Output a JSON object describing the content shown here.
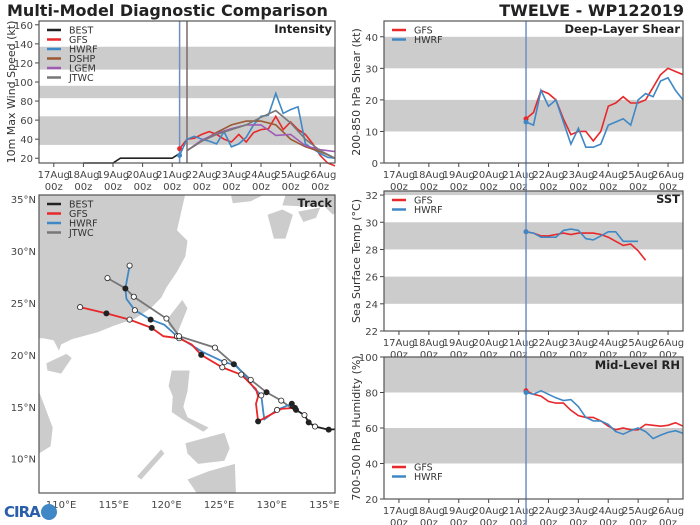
{
  "header": {
    "title": "Multi-Model Diagnostic Comparison",
    "storm": "TWELVE - WP122019"
  },
  "logo_text": "CIRA",
  "colors": {
    "BEST": "#222222",
    "GFS": "#e8282a",
    "HWRF": "#3f88c5",
    "DSHP": "#9b5a32",
    "LGEM": "#a05cb4",
    "JTWC": "#777777",
    "band": "#cccccc",
    "land": "#cccccc"
  },
  "x_ticks": [
    "17Aug 00z",
    "18Aug 00z",
    "19Aug 00z",
    "20Aug 00z",
    "21Aug 00z",
    "22Aug 00z",
    "23Aug 00z",
    "24Aug 00z",
    "25Aug 00z",
    "26Aug 00z"
  ],
  "x_tick_labels": [
    [
      "17Aug",
      "00z"
    ],
    [
      "18Aug",
      "00z"
    ],
    [
      "19Aug",
      "00z"
    ],
    [
      "20Aug",
      "00z"
    ],
    [
      "21Aug",
      "00z"
    ],
    [
      "22Aug",
      "00z"
    ],
    [
      "23Aug",
      "00z"
    ],
    [
      "24Aug",
      "00z"
    ],
    [
      "25Aug",
      "00z"
    ],
    [
      "26Aug",
      "00z"
    ]
  ],
  "xlim": [
    "16Aug 12z",
    "26Aug 12z"
  ],
  "chart_data": [
    {
      "id": "intensity",
      "type": "line",
      "title": "Intensity",
      "ylabel": "10m Max Wind Speed (kt)",
      "ylim": [
        15,
        164
      ],
      "yticks": [
        20,
        40,
        60,
        80,
        100,
        120,
        140,
        160
      ],
      "bands": [
        [
          34,
          64
        ],
        [
          83,
          96
        ],
        [
          113,
          137
        ]
      ],
      "vlines": [
        {
          "x": "21Aug 06z",
          "color": "#6f8fc0"
        },
        {
          "x": "21Aug 12z",
          "color": "#7a6a6a"
        }
      ],
      "legend": "top-left",
      "series": [
        {
          "name": "BEST",
          "x": [
            "18Aug 00z",
            "19Aug 00z",
            "19Aug 06z",
            "21Aug 00z",
            "21Aug 06z"
          ],
          "y": [
            15,
            15,
            20,
            20,
            25
          ]
        },
        {
          "name": "GFS",
          "x": [
            "21Aug 06z",
            "21Aug 12z",
            "21Aug 18z",
            "22Aug 00z",
            "22Aug 06z",
            "22Aug 12z",
            "22Aug 18z",
            "23Aug 00z",
            "23Aug 06z",
            "23Aug 12z",
            "23Aug 18z",
            "24Aug 00z",
            "24Aug 06z",
            "24Aug 12z",
            "24Aug 18z",
            "25Aug 00z",
            "25Aug 06z",
            "25Aug 12z",
            "25Aug 18z",
            "26Aug 00z",
            "26Aug 06z",
            "26Aug 12z"
          ],
          "y": [
            30,
            40,
            41,
            45,
            48,
            45,
            40,
            37,
            45,
            37,
            47,
            50,
            51,
            64,
            50,
            58,
            50,
            45,
            35,
            23,
            15,
            12
          ]
        },
        {
          "name": "HWRF",
          "x": [
            "21Aug 06z",
            "21Aug 12z",
            "21Aug 18z",
            "22Aug 00z",
            "22Aug 06z",
            "22Aug 12z",
            "22Aug 18z",
            "23Aug 00z",
            "23Aug 06z",
            "23Aug 12z",
            "23Aug 18z",
            "24Aug 00z",
            "24Aug 06z",
            "24Aug 12z",
            "24Aug 18z",
            "25Aug 00z",
            "25Aug 06z",
            "25Aug 12z",
            "25Aug 18z",
            "26Aug 00z",
            "26Aug 06z",
            "26Aug 12z"
          ],
          "y": [
            23,
            40,
            43,
            40,
            38,
            35,
            48,
            32,
            35,
            42,
            55,
            64,
            65,
            88,
            67,
            71,
            74,
            35,
            30,
            25,
            21,
            20
          ]
        },
        {
          "name": "DSHP",
          "x": [
            "21Aug 12z",
            "22Aug 00z",
            "22Aug 12z",
            "23Aug 00z",
            "23Aug 12z",
            "24Aug 00z",
            "24Aug 12z",
            "25Aug 00z",
            "25Aug 12z",
            "26Aug 00z",
            "26Aug 12z"
          ],
          "y": [
            28,
            38,
            47,
            55,
            59,
            59,
            55,
            40,
            32,
            27,
            20
          ]
        },
        {
          "name": "LGEM",
          "x": [
            "21Aug 12z",
            "22Aug 00z",
            "22Aug 12z",
            "23Aug 00z",
            "23Aug 12z",
            "24Aug 00z",
            "24Aug 12z",
            "25Aug 00z",
            "25Aug 12z",
            "26Aug 00z",
            "26Aug 12z"
          ],
          "y": [
            28,
            39,
            46,
            51,
            55,
            55,
            44,
            45,
            33,
            29,
            27
          ]
        },
        {
          "name": "JTWC",
          "x": [
            "21Aug 12z",
            "22Aug 00z",
            "22Aug 12z",
            "23Aug 00z",
            "23Aug 12z",
            "24Aug 00z",
            "24Aug 12z",
            "25Aug 00z",
            "25Aug 12z",
            "26Aug 00z",
            "26Aug 12z"
          ],
          "y": [
            28,
            38,
            45,
            50,
            55,
            63,
            70,
            57,
            40,
            28,
            20
          ]
        }
      ]
    },
    {
      "id": "shear",
      "type": "line",
      "title": "Deep-Layer Shear",
      "ylabel": "200-850 hPa Shear (kt)",
      "ylim": [
        0,
        45
      ],
      "yticks": [
        0,
        10,
        20,
        30,
        40
      ],
      "bands": [
        [
          10,
          20
        ],
        [
          30,
          40
        ]
      ],
      "vlines": [
        {
          "x": "21Aug 06z",
          "color": "#6f8fc0"
        }
      ],
      "legend": "top-left",
      "series": [
        {
          "name": "GFS",
          "x": [
            "21Aug 06z",
            "21Aug 12z",
            "21Aug 18z",
            "22Aug 00z",
            "22Aug 06z",
            "22Aug 12z",
            "22Aug 18z",
            "23Aug 00z",
            "23Aug 06z",
            "23Aug 12z",
            "23Aug 18z",
            "24Aug 00z",
            "24Aug 06z",
            "24Aug 12z",
            "24Aug 18z",
            "25Aug 00z",
            "25Aug 06z",
            "25Aug 12z",
            "25Aug 18z",
            "26Aug 00z",
            "26Aug 06z",
            "26Aug 12z"
          ],
          "y": [
            14,
            16,
            23,
            22,
            20,
            14,
            9,
            10,
            10,
            7,
            10,
            18,
            19,
            21,
            19,
            19,
            20,
            24,
            28,
            30,
            29,
            28
          ]
        },
        {
          "name": "HWRF",
          "x": [
            "21Aug 06z",
            "21Aug 12z",
            "21Aug 18z",
            "22Aug 00z",
            "22Aug 06z",
            "22Aug 12z",
            "22Aug 18z",
            "23Aug 00z",
            "23Aug 06z",
            "23Aug 12z",
            "23Aug 18z",
            "24Aug 00z",
            "24Aug 06z",
            "24Aug 12z",
            "24Aug 18z",
            "25Aug 00z",
            "25Aug 06z",
            "25Aug 12z",
            "25Aug 18z",
            "26Aug 00z",
            "26Aug 06z",
            "26Aug 12z"
          ],
          "y": [
            13,
            12,
            23,
            18,
            20,
            13,
            6,
            11,
            5,
            5,
            6,
            12,
            13,
            14,
            12,
            20,
            22,
            21,
            26,
            27,
            23,
            20
          ]
        }
      ]
    },
    {
      "id": "sst",
      "type": "line",
      "title": "SST",
      "ylabel": "Sea Surface Temp (°C)",
      "ylim": [
        22,
        32.3
      ],
      "yticks": [
        22,
        24,
        26,
        28,
        30,
        32
      ],
      "bands": [
        [
          24,
          26
        ],
        [
          28,
          30
        ],
        [
          32,
          32.3
        ]
      ],
      "vlines": [
        {
          "x": "21Aug 06z",
          "color": "#6f8fc0"
        }
      ],
      "legend": "top-left",
      "series": [
        {
          "name": "GFS",
          "x": [
            "21Aug 06z",
            "21Aug 12z",
            "21Aug 18z",
            "22Aug 00z",
            "22Aug 06z",
            "22Aug 12z",
            "22Aug 18z",
            "23Aug 00z",
            "23Aug 06z",
            "23Aug 12z",
            "23Aug 18z",
            "24Aug 00z",
            "24Aug 06z",
            "24Aug 12z",
            "24Aug 18z",
            "25Aug 00z",
            "25Aug 06z"
          ],
          "y": [
            29.3,
            29.2,
            29.0,
            29.0,
            29.1,
            29.2,
            29.1,
            29.2,
            29.2,
            29.2,
            29.1,
            28.9,
            28.6,
            28.3,
            28.4,
            27.9,
            27.2
          ]
        },
        {
          "name": "HWRF",
          "x": [
            "21Aug 06z",
            "21Aug 12z",
            "21Aug 18z",
            "22Aug 00z",
            "22Aug 06z",
            "22Aug 12z",
            "22Aug 18z",
            "23Aug 00z",
            "23Aug 06z",
            "23Aug 12z",
            "23Aug 18z",
            "24Aug 00z",
            "24Aug 06z",
            "24Aug 12z",
            "24Aug 18z",
            "25Aug 00z"
          ],
          "y": [
            29.3,
            29.2,
            28.9,
            28.9,
            28.9,
            29.4,
            29.5,
            29.4,
            28.8,
            28.7,
            29.0,
            29.3,
            29.3,
            28.6,
            28.6,
            28.6
          ]
        }
      ]
    },
    {
      "id": "rh",
      "type": "line",
      "title": "Mid-Level RH",
      "ylabel": "700-500 hPa Humidity (%)",
      "ylim": [
        20,
        100
      ],
      "yticks": [
        20,
        40,
        60,
        80,
        100
      ],
      "bands": [
        [
          40,
          60
        ],
        [
          80,
          100
        ]
      ],
      "vlines": [
        {
          "x": "21Aug 06z",
          "color": "#6f8fc0"
        }
      ],
      "legend": "bottom-left",
      "series": [
        {
          "name": "GFS",
          "x": [
            "21Aug 06z",
            "21Aug 12z",
            "21Aug 18z",
            "22Aug 00z",
            "22Aug 06z",
            "22Aug 12z",
            "22Aug 18z",
            "23Aug 00z",
            "23Aug 06z",
            "23Aug 12z",
            "23Aug 18z",
            "24Aug 00z",
            "24Aug 06z",
            "24Aug 12z",
            "24Aug 18z",
            "25Aug 00z",
            "25Aug 06z",
            "25Aug 12z",
            "25Aug 18z",
            "26Aug 00z",
            "26Aug 06z",
            "26Aug 12z"
          ],
          "y": [
            81,
            79,
            78,
            75,
            74,
            74,
            70,
            67,
            66,
            66,
            64,
            61,
            59,
            60,
            59,
            59,
            62,
            61.5,
            61,
            61.5,
            63,
            61
          ]
        },
        {
          "name": "HWRF",
          "x": [
            "21Aug 06z",
            "21Aug 12z",
            "21Aug 18z",
            "22Aug 00z",
            "22Aug 06z",
            "22Aug 12z",
            "22Aug 18z",
            "23Aug 00z",
            "23Aug 06z",
            "23Aug 12z",
            "23Aug 18z",
            "24Aug 00z",
            "24Aug 06z",
            "24Aug 12z",
            "24Aug 18z",
            "25Aug 00z",
            "25Aug 06z",
            "25Aug 12z",
            "25Aug 18z",
            "26Aug 00z",
            "26Aug 06z",
            "26Aug 12z"
          ],
          "y": [
            80,
            79,
            81,
            79,
            77,
            75.5,
            76,
            72,
            66,
            64,
            64,
            62,
            58,
            56.5,
            58.5,
            60,
            58,
            54,
            56,
            57.5,
            58.5,
            57
          ]
        }
      ]
    },
    {
      "id": "track",
      "type": "map",
      "title": "Track",
      "lon_lim": [
        107.9,
        136.0
      ],
      "lat_lim": [
        6.7,
        35.4
      ],
      "lon_ticks": [
        110,
        115,
        120,
        125,
        130,
        135
      ],
      "lon_tick_labels": [
        "110°E",
        "115°E",
        "120°E",
        "125°E",
        "130°E",
        "135°E"
      ],
      "lat_ticks": [
        10,
        15,
        20,
        25,
        30,
        35
      ],
      "lat_tick_labels": [
        "10°N",
        "15°N",
        "20°N",
        "25°N",
        "30°N",
        "35°N"
      ],
      "legend": "top-left",
      "series": [
        {
          "name": "BEST",
          "lon": [
            136.8,
            135.4,
            134.1,
            133.5,
            133.1,
            132.3,
            131.7
          ],
          "lat": [
            12.9,
            12.8,
            13.1,
            13.5,
            14.2,
            14.7,
            15.0
          ],
          "markers": [
            [
              135.4,
              12.8,
              "filled"
            ],
            [
              134.1,
              13.1,
              "open"
            ],
            [
              133.5,
              13.5,
              "filled"
            ],
            [
              133.1,
              14.2,
              "open"
            ],
            [
              132.3,
              14.7,
              "filled"
            ]
          ]
        },
        {
          "name": "GFS",
          "lon": [
            132.3,
            132.2,
            130.9,
            128.7,
            128.5,
            128.7,
            128.5,
            127.7,
            127.1,
            125.3,
            123.3,
            122.4,
            121.2,
            119.7,
            118.6,
            116.5,
            114.3,
            111.8
          ],
          "lat": [
            15.0,
            14.9,
            14.8,
            13.6,
            15.3,
            16.0,
            16.7,
            17.5,
            18.1,
            18.8,
            20.0,
            21.0,
            21.6,
            21.8,
            22.6,
            23.4,
            24.0,
            24.6
          ],
          "markers": [
            [
              132.2,
              14.9,
              "filled"
            ],
            [
              128.7,
              13.6,
              "filled"
            ],
            [
              127.1,
              18.1,
              "open"
            ],
            [
              125.3,
              18.8,
              "open"
            ],
            [
              123.3,
              20.0,
              "filled"
            ],
            [
              121.2,
              21.6,
              "open"
            ],
            [
              118.6,
              22.6,
              "filled"
            ],
            [
              116.5,
              23.4,
              "open"
            ],
            [
              114.3,
              24.0,
              "filled"
            ],
            [
              111.8,
              24.6,
              "open"
            ]
          ]
        },
        {
          "name": "HWRF",
          "lon": [
            131.9,
            130.5,
            129.3,
            129.2,
            129.0,
            128.3,
            127.6,
            126.6,
            125.5,
            123.4,
            121.0,
            119.8,
            118.5,
            117.0,
            116.2,
            116.1,
            116.5
          ],
          "lat": [
            15.3,
            14.7,
            13.8,
            14.4,
            16.1,
            16.8,
            17.8,
            19.0,
            19.3,
            20.3,
            21.8,
            22.9,
            23.4,
            24.3,
            25.4,
            26.4,
            28.6
          ],
          "markers": [
            [
              131.9,
              15.3,
              "filled"
            ],
            [
              130.5,
              14.7,
              "open"
            ],
            [
              129.0,
              16.1,
              "open"
            ],
            [
              125.5,
              19.3,
              "open"
            ],
            [
              121.0,
              21.8,
              "open"
            ],
            [
              118.5,
              23.4,
              "filled"
            ],
            [
              117.0,
              24.3,
              "open"
            ],
            [
              116.5,
              28.6,
              "open"
            ]
          ]
        },
        {
          "name": "JTWC",
          "lon": [
            131.7,
            130.9,
            129.5,
            128.0,
            126.4,
            124.6,
            121.2,
            120.0,
            116.9,
            116.1,
            114.4
          ],
          "lat": [
            15.0,
            15.6,
            16.4,
            17.6,
            19.1,
            20.7,
            21.8,
            23.5,
            25.6,
            26.4,
            27.4
          ],
          "markers": [
            [
              130.9,
              15.6,
              "open"
            ],
            [
              129.5,
              16.4,
              "filled"
            ],
            [
              128.0,
              17.6,
              "open"
            ],
            [
              126.4,
              19.1,
              "filled"
            ],
            [
              124.6,
              20.7,
              "open"
            ],
            [
              121.2,
              21.8,
              "open"
            ],
            [
              120.0,
              23.5,
              "open"
            ],
            [
              116.9,
              25.6,
              "open"
            ],
            [
              116.1,
              26.4,
              "filled"
            ],
            [
              114.4,
              27.4,
              "open"
            ]
          ]
        }
      ]
    }
  ]
}
